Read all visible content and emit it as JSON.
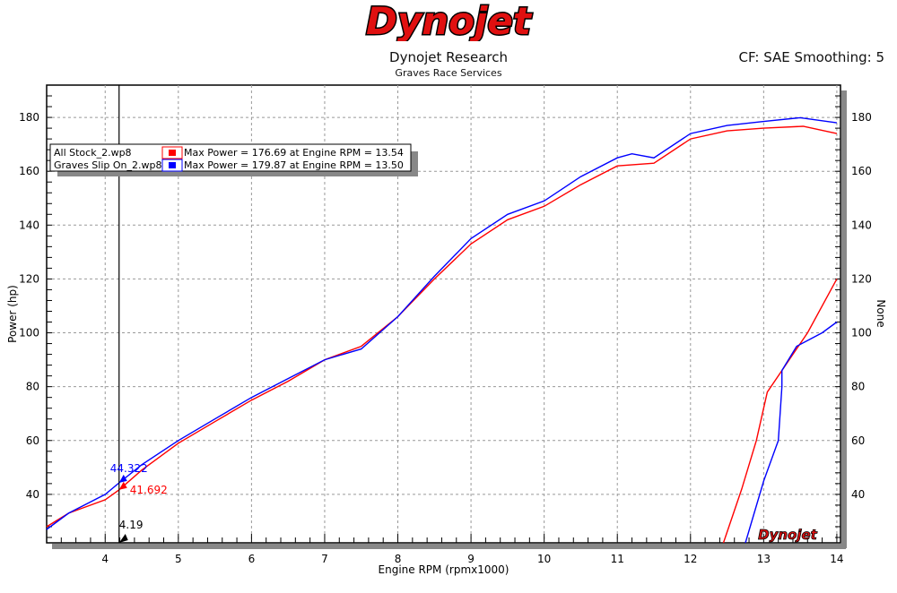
{
  "header": {
    "logo_text": "Dynojet",
    "title": "Dynojet Research",
    "subtitle": "Graves Race Services",
    "cf_text": "CF: SAE Smoothing: 5"
  },
  "chart_data": {
    "type": "line",
    "xlabel": "Engine RPM (rpmx1000)",
    "ylabel": "Power (hp)",
    "y2label": "None",
    "xlim": [
      3.2,
      14.05
    ],
    "ylim": [
      22,
      192
    ],
    "xticks": [
      4,
      5,
      6,
      7,
      8,
      9,
      10,
      11,
      12,
      13,
      14
    ],
    "yticks": [
      40,
      60,
      80,
      100,
      120,
      140,
      160,
      180
    ],
    "grid": true,
    "legend_placement": "top-left",
    "legend": [
      {
        "file": "All Stock_2.wp8",
        "text": "Max Power = 176.69 at Engine RPM = 13.54",
        "color": "#ff0000"
      },
      {
        "file": "Graves Slip On_2.wp8",
        "text": "Max Power = 179.87 at Engine RPM = 13.50",
        "color": "#0000ff"
      }
    ],
    "cursor": {
      "x": 4.19,
      "x_label": "4.19",
      "values": [
        {
          "label": "41.692",
          "y": 41.692,
          "color": "#ff0000"
        },
        {
          "label": "44.322",
          "y": 44.322,
          "color": "#0000ff"
        }
      ]
    },
    "series": [
      {
        "color": "#ff0000",
        "axis": "left",
        "x": [
          3.2,
          3.5,
          4,
          4.19,
          4.5,
          5,
          5.5,
          6,
          6.5,
          7,
          7.5,
          8,
          8.5,
          9,
          9.5,
          10,
          10.5,
          11,
          11.5,
          12,
          12.5,
          13,
          13.54,
          14
        ],
        "y": [
          28,
          33,
          38,
          41.7,
          49,
          59,
          67,
          75,
          82,
          90,
          95,
          106,
          120,
          133,
          142,
          147,
          155,
          162,
          163,
          172,
          175,
          176,
          176.7,
          174
        ]
      },
      {
        "color": "#0000ff",
        "axis": "left",
        "x": [
          3.2,
          3.5,
          4,
          4.19,
          4.5,
          5,
          5.5,
          6,
          6.5,
          7,
          7.5,
          8,
          8.5,
          9,
          9.5,
          10,
          10.5,
          11,
          11.2,
          11.5,
          12,
          12.5,
          13,
          13.5,
          14
        ],
        "y": [
          27,
          33,
          40,
          44.3,
          51,
          60,
          68,
          76,
          83,
          90,
          94,
          106,
          121,
          135,
          144,
          149,
          158,
          165,
          166.5,
          165,
          174,
          177,
          178.5,
          179.9,
          178
        ]
      },
      {
        "color": "#ff0000",
        "axis": "right",
        "x": [
          12.45,
          12.7,
          12.9,
          13.05,
          13.3,
          13.6,
          14
        ],
        "y": [
          22,
          42,
          60,
          78,
          88,
          100,
          120
        ]
      },
      {
        "color": "#0000ff",
        "axis": "right",
        "x": [
          12.75,
          13.0,
          13.2,
          13.25,
          13.25,
          13.45,
          13.8,
          14
        ],
        "y": [
          22,
          45,
          60,
          80,
          86,
          95,
          100,
          104
        ]
      }
    ]
  }
}
